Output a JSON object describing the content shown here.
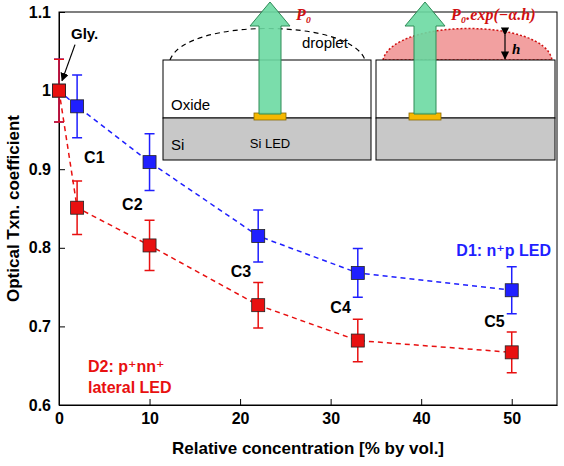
{
  "chart_data": {
    "type": "scatter",
    "x_label": "Relative concentration [% by vol.]",
    "y_label": "Optical Txn. coefficient",
    "xlim": [
      0,
      55
    ],
    "xticks": [
      0,
      10,
      20,
      30,
      40,
      50
    ],
    "ylim": [
      0.6,
      1.1
    ],
    "yticks": [
      0.6,
      0.7,
      0.8,
      0.9,
      1,
      1.1
    ],
    "marker": "square",
    "line_style": "dashed",
    "x": [
      0,
      2,
      10,
      22,
      33,
      50
    ],
    "series": [
      {
        "name": "D1: n⁺p LED",
        "color": "#1f1fff",
        "values": [
          1,
          0.98,
          0.909,
          0.815,
          0.768,
          0.746
        ],
        "errors": [
          0.04,
          0.04,
          0.036,
          0.033,
          0.031,
          0.03
        ]
      },
      {
        "name": "D2: p⁺nn⁺ lateral LED",
        "color": "#e81010",
        "values": [
          1,
          0.851,
          0.803,
          0.727,
          0.682,
          0.667
        ],
        "errors": [
          0.04,
          0.034,
          0.032,
          0.029,
          0.027,
          0.026
        ]
      }
    ],
    "annotations": [
      {
        "text": "Gly.",
        "x": 0
      },
      {
        "text": "C1",
        "x": 2
      },
      {
        "text": "C2",
        "x": 10
      },
      {
        "text": "C3",
        "x": 22
      },
      {
        "text": "C4",
        "x": 33
      },
      {
        "text": "C5",
        "x": 50
      }
    ],
    "inset": {
      "beam_in": "P₀",
      "beam_out": "P₀.exp(−α.h)",
      "droplet": "droplet",
      "oxide": "Oxide",
      "substrate": "Si",
      "led": "Si LED",
      "height": "h"
    }
  }
}
